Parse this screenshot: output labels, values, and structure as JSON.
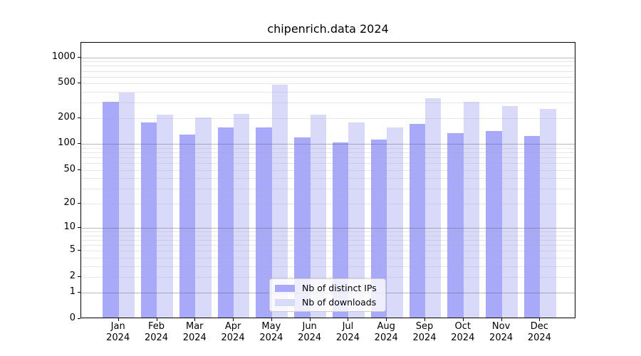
{
  "title": "chipenrich.data 2024",
  "chart_data": {
    "type": "bar",
    "title": "chipenrich.data 2024",
    "categories": [
      "Jan",
      "Feb",
      "Mar",
      "Apr",
      "May",
      "Jun",
      "Jul",
      "Aug",
      "Sep",
      "Oct",
      "Nov",
      "Dec"
    ],
    "year_label": "2024",
    "series": [
      {
        "name": "Nb of distinct IPs",
        "key": "distinct-ips",
        "color": "#a9a9fa",
        "values": [
          298,
          174,
          125,
          152,
          151,
          117,
          102,
          110,
          167,
          130,
          138,
          121
        ]
      },
      {
        "name": "Nb of downloads",
        "key": "downloads",
        "color": "#d9d9fa",
        "values": [
          383,
          214,
          196,
          217,
          468,
          213,
          174,
          151,
          330,
          297,
          266,
          249
        ]
      }
    ],
    "y_axis": {
      "scale": "log10(1+x)",
      "tick_values": [
        0,
        1,
        2,
        5,
        10,
        20,
        50,
        100,
        200,
        500,
        1000
      ],
      "major_gridlines": [
        1,
        10,
        100,
        1000
      ],
      "ylim": [
        0,
        1500
      ]
    },
    "legend_position": "bottom-center",
    "grid": true
  },
  "colors": {
    "bar_distinct_ips": "#a9a9fa",
    "bar_downloads": "#d9d9fa",
    "frame": "#000000",
    "major_grid": "#8c8c8c",
    "minor_grid": "#e6e6e6",
    "legend_border": "#cccccc"
  }
}
